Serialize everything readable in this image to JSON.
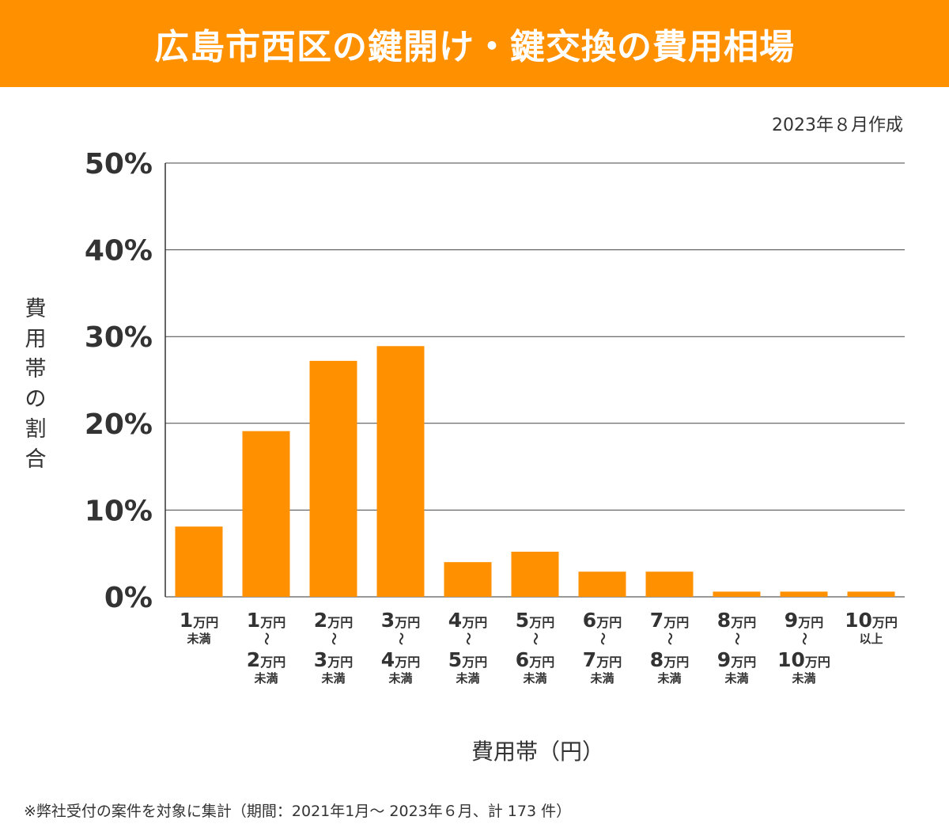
{
  "chart_data": {
    "type": "bar",
    "title": "広島市西区の鍵開け・鍵交換の費用相場",
    "subtitle": "2023年８月作成",
    "xlabel": "費用帯（円）",
    "ylabel": "費用帯の割合",
    "ylim": [
      0,
      50
    ],
    "yticks": [
      "0%",
      "10%",
      "20%",
      "30%",
      "40%",
      "50%"
    ],
    "grid": true,
    "categories": [
      [
        "1万円",
        "未満"
      ],
      [
        "1万円",
        "〜",
        "2万円",
        "未満"
      ],
      [
        "2万円",
        "〜",
        "3万円",
        "未満"
      ],
      [
        "3万円",
        "〜",
        "4万円",
        "未満"
      ],
      [
        "4万円",
        "〜",
        "5万円",
        "未満"
      ],
      [
        "5万円",
        "〜",
        "6万円",
        "未満"
      ],
      [
        "6万円",
        "〜",
        "7万円",
        "未満"
      ],
      [
        "7万円",
        "〜",
        "8万円",
        "未満"
      ],
      [
        "8万円",
        "〜",
        "9万円",
        "未満"
      ],
      [
        "9万円",
        "〜",
        "10万円",
        "未満"
      ],
      [
        "10万円",
        "以上"
      ]
    ],
    "values": [
      8.1,
      19.1,
      27.2,
      28.9,
      4.0,
      5.2,
      2.9,
      2.9,
      0.6,
      0.6,
      0.6
    ],
    "bar_color": "#ff9100",
    "note": "※弊社受付の案件を対象に集計（期間：2021年1月～ 2023年６月、計 173 件）"
  }
}
